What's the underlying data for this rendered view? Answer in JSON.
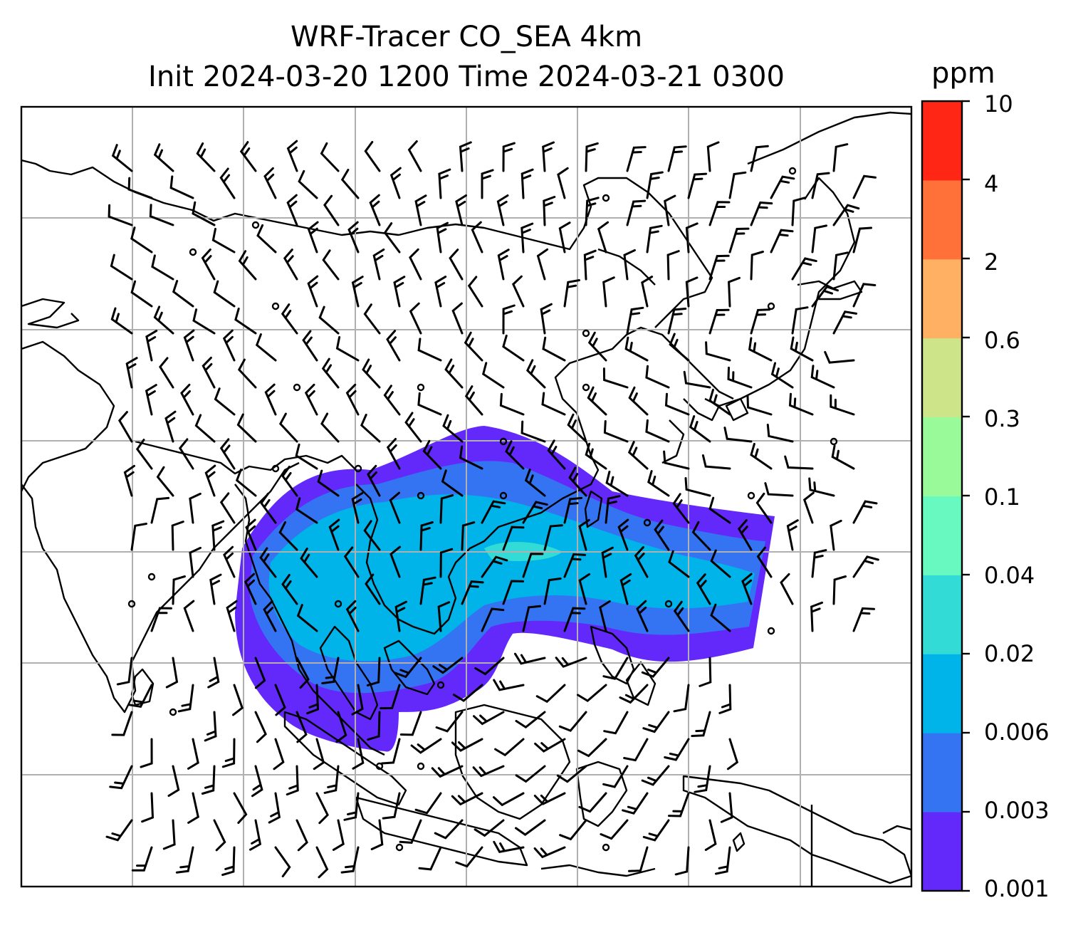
{
  "title_line1": "WRF-Tracer CO_SEA 4km",
  "title_line2": "Init 2024-03-20 1200 Time 2024-03-21 0300",
  "colorbar": {
    "unit": "ppm",
    "ticks": [
      "0.001",
      "0.003",
      "0.006",
      "0.02",
      "0.04",
      "0.1",
      "0.3",
      "0.6",
      "2",
      "4",
      "10"
    ],
    "colors": [
      "#6329fb",
      "#3474f3",
      "#00b3e8",
      "#33dbd6",
      "#67f9bf",
      "#98fa99",
      "#cde489",
      "#ffb062",
      "#ff7138",
      "#ff2615"
    ]
  }
}
